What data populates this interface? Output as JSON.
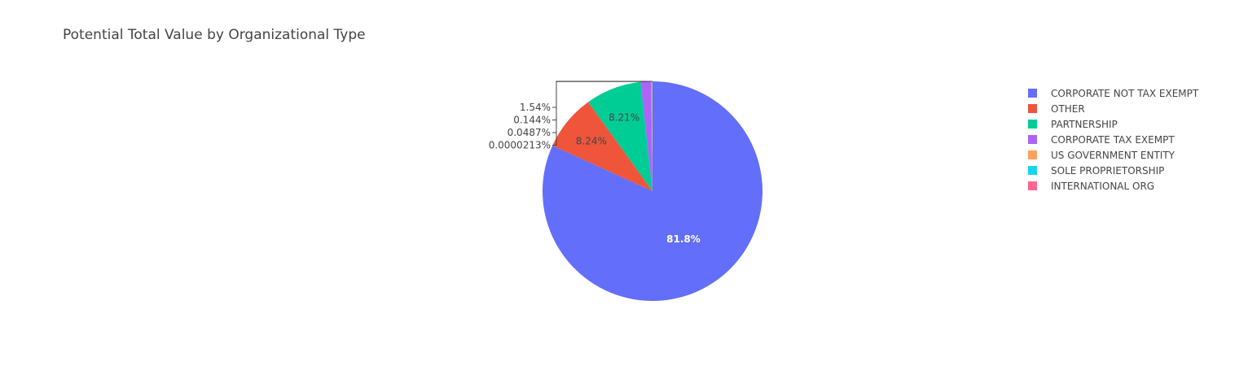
{
  "chart_data": {
    "type": "pie",
    "title": "Potential Total Value by Organizational Type",
    "labels": [
      "CORPORATE NOT TAX EXEMPT",
      "OTHER",
      "PARTNERSHIP",
      "CORPORATE TAX EXEMPT",
      "US GOVERNMENT ENTITY",
      "SOLE PROPRIETORSHIP",
      "INTERNATIONAL ORG"
    ],
    "values": [
      81.8,
      8.24,
      8.21,
      1.54,
      0.144,
      0.0487,
      2.13e-05
    ],
    "text_labels": [
      "81.8%",
      "8.24%",
      "8.21%",
      "1.54%",
      "0.144%",
      "0.0487%",
      "0.0000213%"
    ],
    "colors": [
      "#636efa",
      "#EF553B",
      "#00cc96",
      "#ab63fa",
      "#FFA15A",
      "#19d3f3",
      "#FF6692"
    ],
    "legend_position": "top-right",
    "direction": "clockwise",
    "start": "top"
  }
}
